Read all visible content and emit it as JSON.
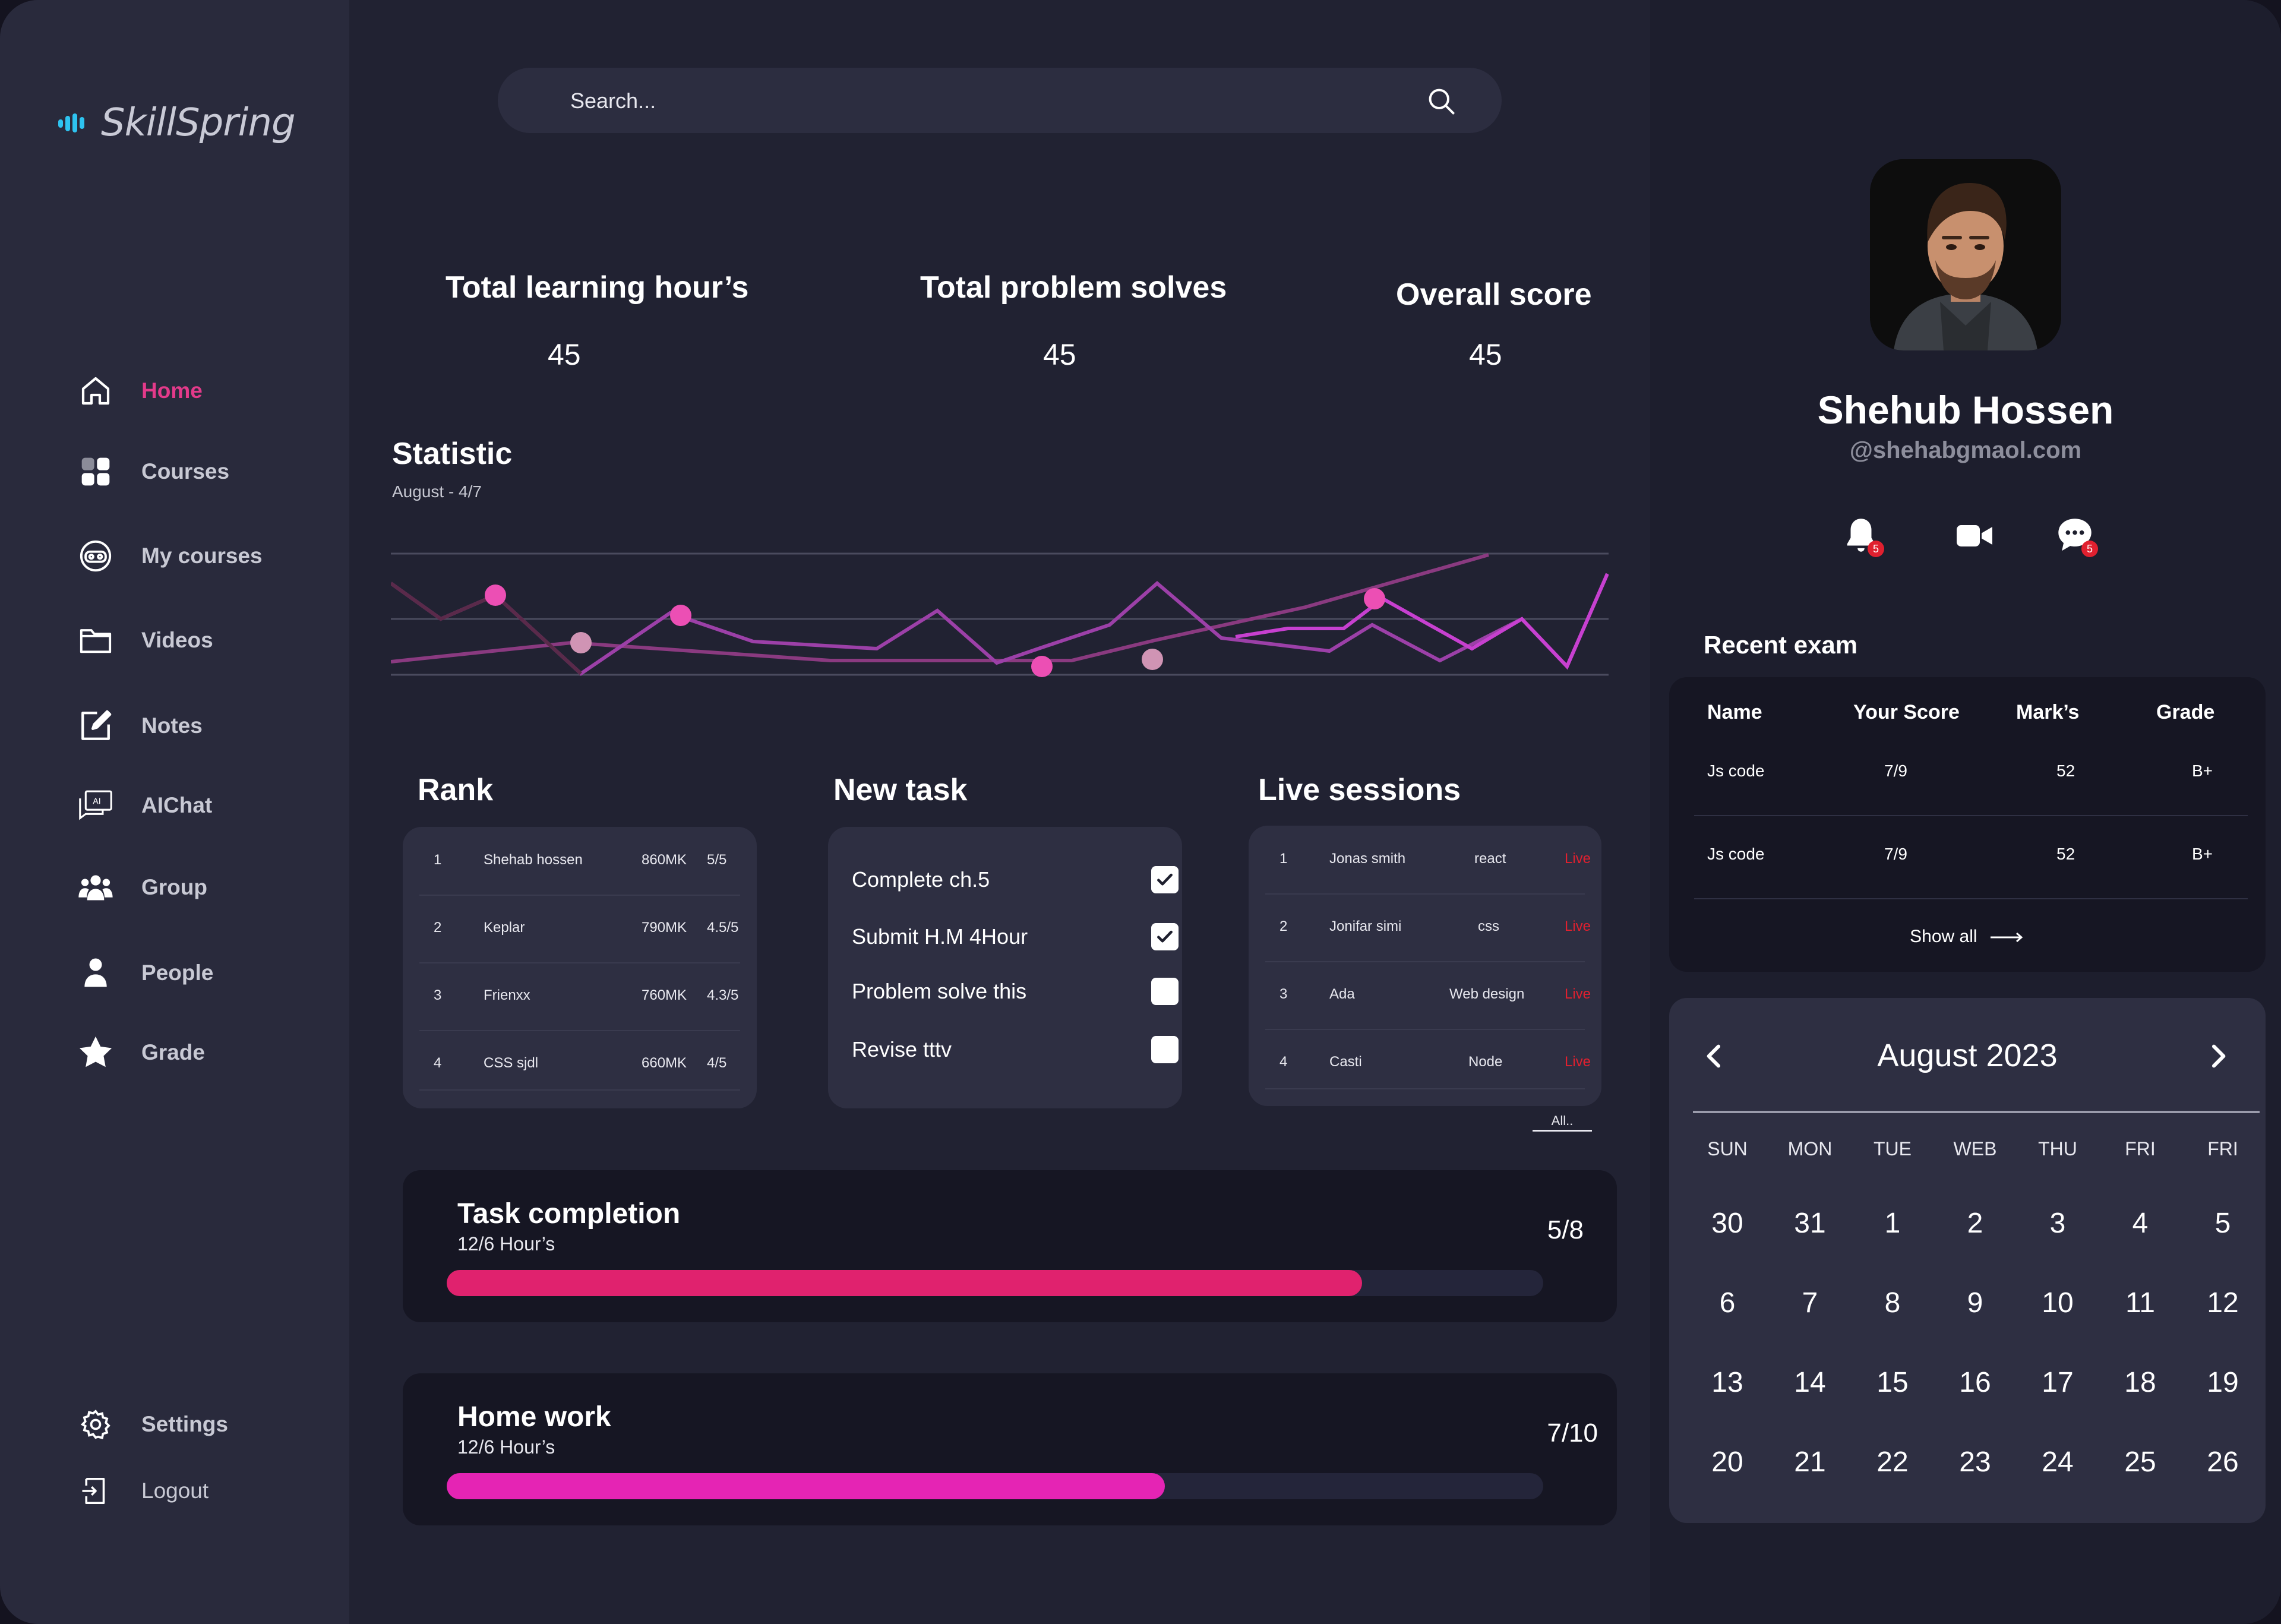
{
  "app": {
    "name": "SkillSpring",
    "colors": {
      "accent": "#e33a8a",
      "logo": "#2ec3f0",
      "live": "#e0202f"
    }
  },
  "sidebar": {
    "items": [
      {
        "label": "Home",
        "icon": "home-icon"
      },
      {
        "label": "Courses",
        "icon": "grid-icon"
      },
      {
        "label": "My courses",
        "icon": "vr-icon"
      },
      {
        "label": "Videos",
        "icon": "folder-icon"
      },
      {
        "label": "Notes",
        "icon": "edit-icon"
      },
      {
        "label": "AIChat",
        "icon": "ai-chat-icon"
      },
      {
        "label": "Group",
        "icon": "group-icon"
      },
      {
        "label": "People",
        "icon": "person-icon"
      },
      {
        "label": "Grade",
        "icon": "star-icon"
      }
    ],
    "bottom": [
      {
        "label": "Settings",
        "icon": "gear-icon"
      },
      {
        "label": "Logout",
        "icon": "logout-icon"
      }
    ]
  },
  "search": {
    "placeholder": "Search..."
  },
  "stats": [
    {
      "title": "Total learning hour’s",
      "value": "45"
    },
    {
      "title": "Total problem solves",
      "value": "45"
    },
    {
      "title": "Overall score",
      "value": "45"
    }
  ],
  "statistic": {
    "title": "Statistic",
    "subtitle": "August - 4/7"
  },
  "rank": {
    "title": "Rank",
    "rows": [
      {
        "pos": "1",
        "name": "Shehab hossen",
        "points": "860MK",
        "score": "5/5"
      },
      {
        "pos": "2",
        "name": "Keplar",
        "points": "790MK",
        "score": "4.5/5"
      },
      {
        "pos": "3",
        "name": "Frienxx",
        "points": "760MK",
        "score": "4.3/5"
      },
      {
        "pos": "4",
        "name": "CSS sjdl",
        "points": "660MK",
        "score": "4/5"
      }
    ]
  },
  "new_task": {
    "title": "New task",
    "items": [
      {
        "label": "Complete ch.5",
        "checked": true
      },
      {
        "label": "Submit H.M  4Hour",
        "checked": true
      },
      {
        "label": "Problem solve this",
        "checked": false
      },
      {
        "label": "Revise tttv",
        "checked": false
      }
    ]
  },
  "live_sessions": {
    "title": "Live sessions",
    "rows": [
      {
        "pos": "1",
        "name": "Jonas smith",
        "topic": "react",
        "status": "Live"
      },
      {
        "pos": "2",
        "name": "Jonifar simi",
        "topic": "css",
        "status": "Live"
      },
      {
        "pos": "3",
        "name": "Ada",
        "topic": "Web design",
        "status": "Live"
      },
      {
        "pos": "4",
        "name": "Casti",
        "topic": "Node",
        "status": "Live"
      }
    ],
    "all_label": "All.."
  },
  "task_completion": {
    "title": "Task completion",
    "subtitle": "12/6 Hour’s",
    "count": "5/8",
    "progress": 0.835,
    "color": "#e0226e"
  },
  "homework": {
    "title": "Home work",
    "subtitle": "12/6 Hour’s",
    "count": "7/10",
    "progress": 0.655,
    "color": "#e524b4"
  },
  "profile": {
    "name": "Shehub  Hossen",
    "email": "@shehabgmaol.com",
    "notification_count": "5",
    "message_count": "5"
  },
  "recent_exam": {
    "title": "Recent exam",
    "headers": [
      "Name",
      "Your Score",
      "Mark’s",
      "Grade"
    ],
    "rows": [
      {
        "name": "Js code",
        "score": "7/9",
        "marks": "52",
        "grade": "B+"
      },
      {
        "name": "Js code",
        "score": "7/9",
        "marks": "52",
        "grade": "B+"
      }
    ],
    "show_all": "Show all"
  },
  "calendar": {
    "title": "August 2023",
    "weekdays": [
      "SUN",
      "MON",
      "TUE",
      "WEB",
      "THU",
      "FRI",
      "FRI"
    ],
    "weeks": [
      [
        "30",
        "31",
        "1",
        "2",
        "3",
        "4",
        "5"
      ],
      [
        "6",
        "7",
        "8",
        "9",
        "10",
        "11",
        "12"
      ],
      [
        "13",
        "14",
        "15",
        "16",
        "17",
        "18",
        "19"
      ],
      [
        "20",
        "21",
        "22",
        "23",
        "24",
        "25",
        "26"
      ]
    ]
  }
}
